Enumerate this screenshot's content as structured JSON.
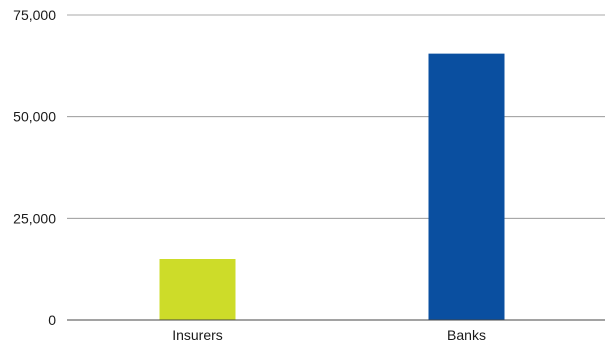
{
  "chart_data": {
    "type": "bar",
    "categories": [
      "Insurers",
      "Banks"
    ],
    "values": [
      15000,
      65500
    ],
    "colors": [
      "#cddc29",
      "#0a4fa0"
    ],
    "title": "",
    "xlabel": "",
    "ylabel": "",
    "ylim": [
      0,
      75000
    ],
    "y_ticks": [
      0,
      25000,
      50000,
      75000
    ],
    "y_tick_labels": [
      "0",
      "25,000",
      "50,000",
      "75,000"
    ],
    "grid": true,
    "legend": "none"
  }
}
